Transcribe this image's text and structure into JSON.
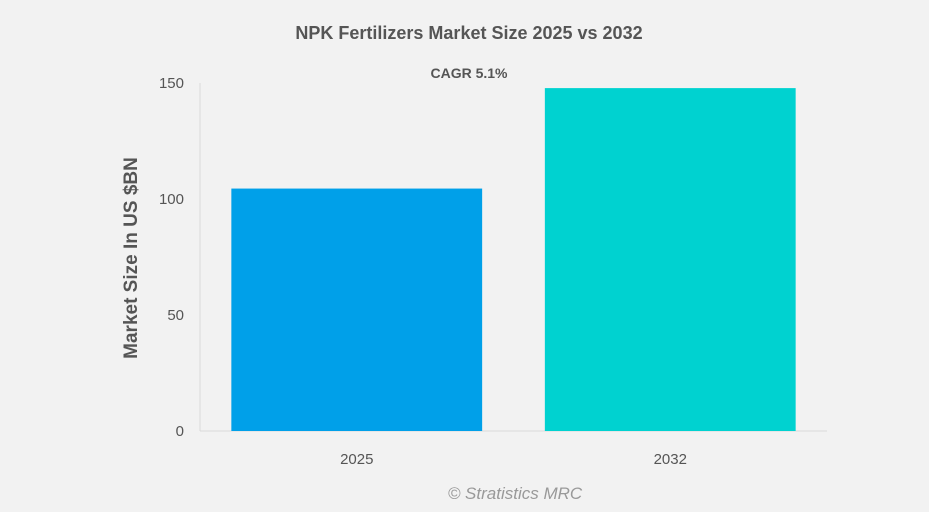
{
  "chart_data": {
    "type": "bar",
    "title": "NPK Fertilizers Market Size 2025 vs 2032",
    "subtitle": "CAGR 5.1%",
    "xlabel": "",
    "ylabel": "Market Size In US $BN",
    "categories": [
      "2025",
      "2032"
    ],
    "values": [
      104.5,
      147.8
    ],
    "bar_colors": [
      "#00a0e9",
      "#00d2d0"
    ],
    "ylim": [
      0,
      150
    ],
    "yticks": [
      0,
      50,
      100,
      150
    ],
    "grid": false,
    "legend": "none"
  },
  "credit": "© Stratistics MRC"
}
